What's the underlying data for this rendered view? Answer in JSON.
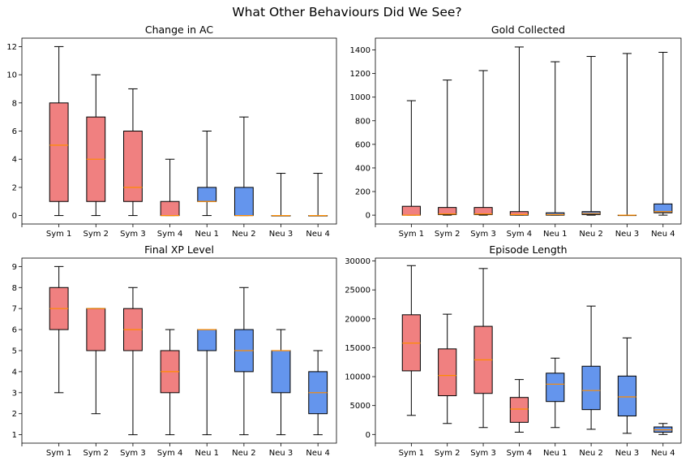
{
  "title": "What Other Behaviours Did We See?",
  "colors": {
    "sym": "#f08080",
    "neu": "#6495ed",
    "median": "#ff8c00",
    "line": "#000000"
  },
  "chart_data": [
    {
      "type": "box",
      "title": "Change in AC",
      "categories": [
        "Sym 1",
        "Sym 2",
        "Sym 3",
        "Sym 4",
        "Neu 1",
        "Neu 2",
        "Neu 3",
        "Neu 4"
      ],
      "yticks": [
        0,
        2,
        4,
        6,
        8,
        10,
        12
      ],
      "ylim": [
        -0.6,
        12.6
      ],
      "boxes": [
        {
          "min": 0,
          "q1": 1,
          "median": 5,
          "q3": 8,
          "max": 12,
          "group": "sym"
        },
        {
          "min": 0,
          "q1": 1,
          "median": 4,
          "q3": 7,
          "max": 10,
          "group": "sym"
        },
        {
          "min": 0,
          "q1": 1,
          "median": 2,
          "q3": 6,
          "max": 9,
          "group": "sym"
        },
        {
          "min": 0,
          "q1": 0,
          "median": 0,
          "q3": 1,
          "max": 4,
          "group": "sym"
        },
        {
          "min": 0,
          "q1": 1,
          "median": 1,
          "q3": 2,
          "max": 6,
          "group": "neu"
        },
        {
          "min": 0,
          "q1": 0,
          "median": 0,
          "q3": 2,
          "max": 7,
          "group": "neu"
        },
        {
          "min": 0,
          "q1": 0,
          "median": 0,
          "q3": 0,
          "max": 3,
          "group": "neu"
        },
        {
          "min": 0,
          "q1": 0,
          "median": 0,
          "q3": 0,
          "max": 3,
          "group": "neu"
        }
      ]
    },
    {
      "type": "box",
      "title": "Gold Collected",
      "categories": [
        "Sym 1",
        "Sym 2",
        "Sym 3",
        "Sym 4",
        "Neu 1",
        "Neu 2",
        "Neu 3",
        "Neu 4"
      ],
      "yticks": [
        0,
        200,
        400,
        600,
        800,
        1000,
        1200,
        1400
      ],
      "ylim": [
        -75,
        1500
      ],
      "boxes": [
        {
          "min": 0,
          "q1": 0,
          "median": 0,
          "q3": 75,
          "max": 970,
          "group": "sym"
        },
        {
          "min": 0,
          "q1": 5,
          "median": 10,
          "q3": 65,
          "max": 1145,
          "group": "sym"
        },
        {
          "min": 0,
          "q1": 5,
          "median": 10,
          "q3": 65,
          "max": 1225,
          "group": "sym"
        },
        {
          "min": 0,
          "q1": 0,
          "median": 5,
          "q3": 30,
          "max": 1425,
          "group": "sym"
        },
        {
          "min": 0,
          "q1": 0,
          "median": 5,
          "q3": 20,
          "max": 1300,
          "group": "neu"
        },
        {
          "min": 0,
          "q1": 5,
          "median": 15,
          "q3": 30,
          "max": 1345,
          "group": "neu"
        },
        {
          "min": 0,
          "q1": 0,
          "median": 0,
          "q3": 0,
          "max": 1370,
          "group": "neu"
        },
        {
          "min": 0,
          "q1": 20,
          "median": 30,
          "q3": 95,
          "max": 1380,
          "group": "neu"
        }
      ]
    },
    {
      "type": "box",
      "title": "Final XP Level",
      "categories": [
        "Sym 1",
        "Sym 2",
        "Sym 3",
        "Sym 4",
        "Neu 1",
        "Neu 2",
        "Neu 3",
        "Neu 4"
      ],
      "yticks": [
        1,
        2,
        3,
        4,
        5,
        6,
        7,
        8,
        9
      ],
      "ylim": [
        0.6,
        9.4
      ],
      "boxes": [
        {
          "min": 3,
          "q1": 6,
          "median": 7,
          "q3": 8,
          "max": 9,
          "group": "sym"
        },
        {
          "min": 2,
          "q1": 5,
          "median": 7,
          "q3": 7,
          "max": 7,
          "group": "sym"
        },
        {
          "min": 1,
          "q1": 5,
          "median": 6,
          "q3": 7,
          "max": 8,
          "group": "sym"
        },
        {
          "min": 1,
          "q1": 3,
          "median": 4,
          "q3": 5,
          "max": 6,
          "group": "sym"
        },
        {
          "min": 1,
          "q1": 5,
          "median": 6,
          "q3": 6,
          "max": 6,
          "group": "neu"
        },
        {
          "min": 1,
          "q1": 4,
          "median": 5,
          "q3": 6,
          "max": 8,
          "group": "neu"
        },
        {
          "min": 1,
          "q1": 3,
          "median": 5,
          "q3": 5,
          "max": 6,
          "group": "neu"
        },
        {
          "min": 1,
          "q1": 2,
          "median": 3,
          "q3": 4,
          "max": 5,
          "group": "neu"
        }
      ]
    },
    {
      "type": "box",
      "title": "Episode Length",
      "categories": [
        "Sym 1",
        "Sym 2",
        "Sym 3",
        "Sym 4",
        "Neu 1",
        "Neu 2",
        "Neu 3",
        "Neu 4"
      ],
      "yticks": [
        0,
        5000,
        10000,
        15000,
        20000,
        25000,
        30000
      ],
      "ylim": [
        -1500,
        30500
      ],
      "boxes": [
        {
          "min": 3300,
          "q1": 11000,
          "median": 15800,
          "q3": 20700,
          "max": 29200,
          "group": "sym"
        },
        {
          "min": 1900,
          "q1": 6700,
          "median": 10200,
          "q3": 14800,
          "max": 20800,
          "group": "sym"
        },
        {
          "min": 1200,
          "q1": 7100,
          "median": 12900,
          "q3": 18700,
          "max": 28700,
          "group": "sym"
        },
        {
          "min": 400,
          "q1": 2100,
          "median": 4400,
          "q3": 6400,
          "max": 9500,
          "group": "sym"
        },
        {
          "min": 1200,
          "q1": 5700,
          "median": 8700,
          "q3": 10600,
          "max": 13200,
          "group": "neu"
        },
        {
          "min": 900,
          "q1": 4300,
          "median": 7600,
          "q3": 11800,
          "max": 22200,
          "group": "neu"
        },
        {
          "min": 200,
          "q1": 3200,
          "median": 6500,
          "q3": 10100,
          "max": 16700,
          "group": "neu"
        },
        {
          "min": 0,
          "q1": 400,
          "median": 800,
          "q3": 1300,
          "max": 1900,
          "group": "neu"
        }
      ]
    }
  ]
}
